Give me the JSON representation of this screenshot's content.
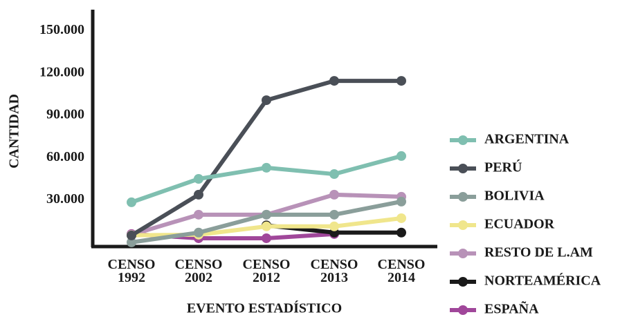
{
  "chart_data": {
    "type": "line",
    "y_label": "CANTIDAD",
    "x_label": "EVENTO ESTADÍSTICO",
    "categories": [
      "CENSO 1992",
      "CENSO 2002",
      "CENSO 2012",
      "CENSO 2013",
      "CENSO 2014"
    ],
    "ylim": [
      -3000,
      165000
    ],
    "yticks": [
      {
        "value": 30000,
        "label": "30.000"
      },
      {
        "value": 60000,
        "label": "60.000"
      },
      {
        "value": 90000,
        "label": "90.000"
      },
      {
        "value": 120000,
        "label": "120.000"
      },
      {
        "value": 150000,
        "label": "150.000"
      }
    ],
    "legend": "right",
    "series": [
      {
        "name": "ARGENTINA",
        "color": "#7fbfb0",
        "values": [
          28400,
          45000,
          52900,
          48400,
          61200
        ]
      },
      {
        "name": "PERÚ",
        "color": "#4a4f57",
        "values": [
          4900,
          33800,
          100800,
          114500,
          114500
        ]
      },
      {
        "name": "BOLIVIA",
        "color": "#8a9e9a",
        "values": [
          0,
          6900,
          19600,
          19600,
          28900
        ]
      },
      {
        "name": "ECUADOR",
        "color": "#f0e68c",
        "values": [
          5000,
          5400,
          11300,
          11300,
          17100
        ]
      },
      {
        "name": "RESTO DE L.AM",
        "color": "#b892b8",
        "values": [
          5400,
          19600,
          19600,
          33800,
          32300
        ]
      },
      {
        "name": "NORTEAMÉRICA",
        "color": "#1a1a1a",
        "values": [
          null,
          null,
          12000,
          6900,
          6900
        ]
      },
      {
        "name": "ESPAÑA",
        "color": "#a0479a",
        "values": [
          5900,
          2900,
          2900,
          5900,
          null
        ]
      }
    ]
  }
}
